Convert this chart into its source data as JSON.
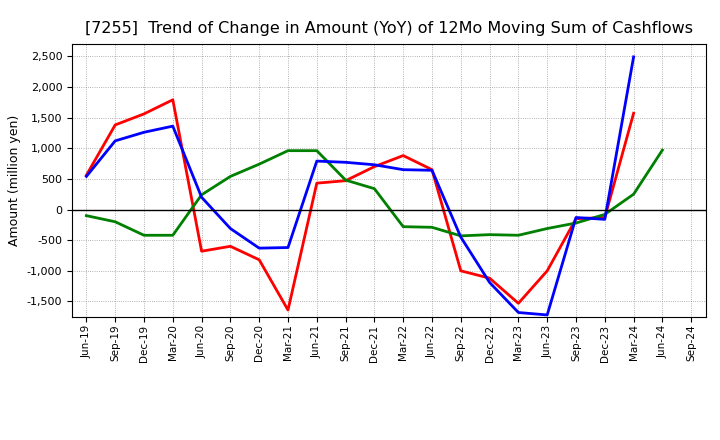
{
  "title": "[7255]  Trend of Change in Amount (YoY) of 12Mo Moving Sum of Cashflows",
  "ylabel": "Amount (million yen)",
  "x_labels": [
    "Jun-19",
    "Sep-19",
    "Dec-19",
    "Mar-20",
    "Jun-20",
    "Sep-20",
    "Dec-20",
    "Mar-21",
    "Jun-21",
    "Sep-21",
    "Dec-21",
    "Mar-22",
    "Jun-22",
    "Sep-22",
    "Dec-22",
    "Mar-23",
    "Jun-23",
    "Sep-23",
    "Dec-23",
    "Mar-24",
    "Jun-24",
    "Sep-24"
  ],
  "operating": [
    560,
    1380,
    1560,
    1790,
    -680,
    -600,
    -820,
    -1640,
    430,
    470,
    700,
    880,
    650,
    -1000,
    -1120,
    -1530,
    -1000,
    -150,
    -130,
    1570,
    null,
    null
  ],
  "investing": [
    -100,
    -200,
    -420,
    -420,
    240,
    540,
    740,
    960,
    960,
    480,
    340,
    -280,
    -290,
    -430,
    -410,
    -420,
    -310,
    -220,
    -80,
    250,
    970,
    null
  ],
  "free": [
    540,
    1120,
    1260,
    1360,
    200,
    -310,
    -630,
    -620,
    790,
    770,
    730,
    650,
    640,
    -450,
    -1190,
    -1680,
    -1720,
    -130,
    -160,
    2490,
    null,
    null
  ],
  "operating_color": "#ff0000",
  "investing_color": "#008000",
  "free_color": "#0000ff",
  "ylim": [
    -1750,
    2700
  ],
  "yticks": [
    -1500,
    -1000,
    -500,
    0,
    500,
    1000,
    1500,
    2000,
    2500
  ],
  "background_color": "#ffffff",
  "grid_color": "#999999",
  "title_fontsize": 11.5,
  "axis_fontsize": 9,
  "legend_fontsize": 9,
  "linewidth": 2.0
}
